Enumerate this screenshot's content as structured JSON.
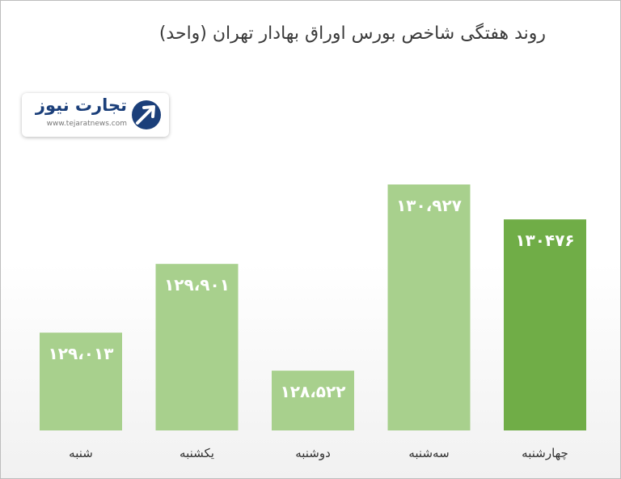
{
  "chart_data": {
    "type": "bar",
    "title": "روند هفتگی شاخص بورس اوراق بهادار تهران (واحد)",
    "categories": [
      "شنبه",
      "یکشنبه",
      "دوشنبه",
      "سه‌شنبه",
      "چهارشنبه"
    ],
    "values": [
      129013,
      129901,
      128522,
      130927,
      130476
    ],
    "value_labels": [
      "۱۲۹،۰۱۳",
      "۱۲۹،۹۰۱",
      "۱۲۸،۵۲۲",
      "۱۳۰،۹۲۷",
      "۱۳۰۴۷۶"
    ],
    "highlight_index": 4,
    "ylim": [
      127750,
      131000
    ],
    "grid": false,
    "xlabel": "",
    "ylabel": ""
  },
  "logo": {
    "text": "تجارت نیوز",
    "url": "www.tejaratnews.com"
  },
  "colors": {
    "bar": "#a8d08d",
    "bar_highlight": "#70ad47",
    "logo_primary": "#1b3f7a"
  }
}
